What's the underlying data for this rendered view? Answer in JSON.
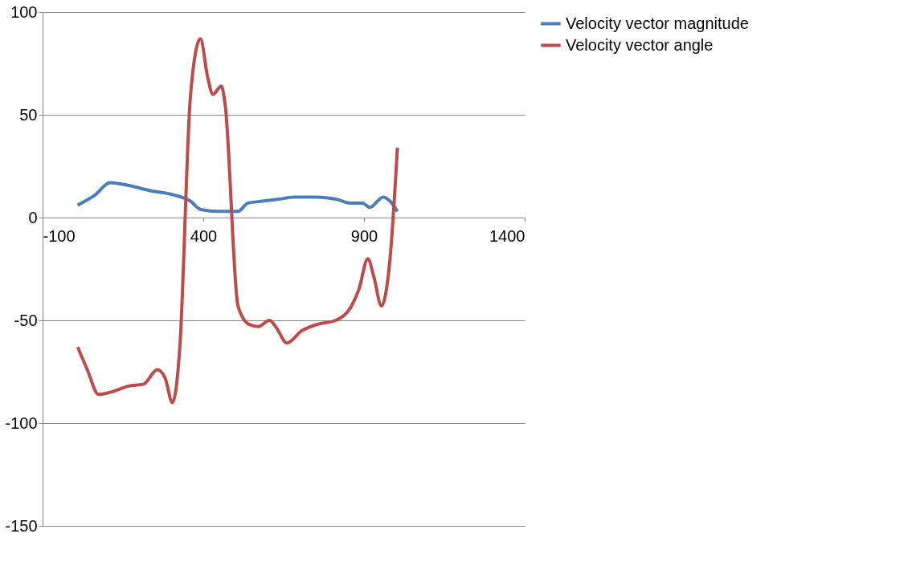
{
  "chart_data": {
    "type": "line",
    "xlim": [
      -100,
      1400
    ],
    "xticks": [
      -100,
      400,
      900,
      1400
    ],
    "ylim": [
      -150,
      100
    ],
    "yticks": [
      -150,
      -100,
      -50,
      0,
      50,
      100
    ],
    "grid": "y",
    "legend": "right",
    "marker": "none",
    "line_style": "solid",
    "series": [
      {
        "name": "Velocity vector magnitude",
        "color": "#4a7ebb",
        "x": [
          9,
          63,
          110,
          156,
          238,
          309,
          360,
          391,
          449,
          508,
          538,
          584,
          637,
          683,
          754,
          812,
          861,
          896,
          918,
          960,
          981,
          1004
        ],
        "values": [
          6,
          11,
          17,
          16,
          13,
          11,
          8,
          4,
          3,
          3,
          7,
          8,
          9,
          10,
          10,
          9,
          7,
          7,
          5,
          10,
          8,
          3
        ]
      },
      {
        "name": "Velocity vector angle",
        "color": "#be4b48",
        "x": [
          9,
          39,
          74,
          110,
          168,
          215,
          257,
          281,
          304,
          327,
          360,
          391,
          414,
          430,
          456,
          468,
          508,
          543,
          571,
          606,
          625,
          660,
          707,
          754,
          812,
          861,
          884,
          912,
          931,
          954,
          981,
          1004
        ],
        "values": [
          -63,
          -74,
          -86,
          -85,
          -82,
          -81,
          -74,
          -78,
          -90,
          -63,
          59,
          87,
          68,
          60,
          64,
          55,
          -43,
          -52,
          -53,
          -50,
          -53,
          -61,
          -55,
          -52,
          -50,
          -43,
          -35,
          -20,
          -29,
          -43,
          -20,
          34
        ]
      }
    ]
  }
}
